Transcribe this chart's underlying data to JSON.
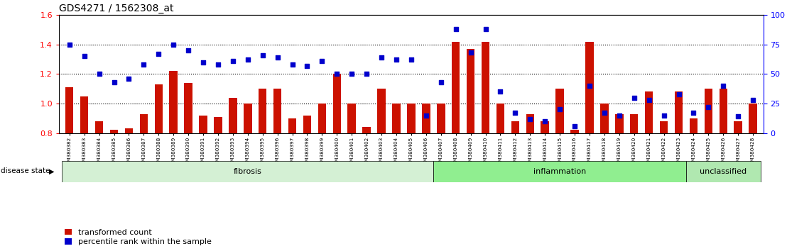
{
  "title": "GDS4271 / 1562308_at",
  "samples": [
    "GSM380382",
    "GSM380383",
    "GSM380384",
    "GSM380385",
    "GSM380386",
    "GSM380387",
    "GSM380388",
    "GSM380389",
    "GSM380390",
    "GSM380391",
    "GSM380392",
    "GSM380393",
    "GSM380394",
    "GSM380395",
    "GSM380396",
    "GSM380397",
    "GSM380398",
    "GSM380399",
    "GSM380400",
    "GSM380401",
    "GSM380402",
    "GSM380403",
    "GSM380404",
    "GSM380405",
    "GSM380406",
    "GSM380407",
    "GSM380408",
    "GSM380409",
    "GSM380410",
    "GSM380411",
    "GSM380412",
    "GSM380413",
    "GSM380414",
    "GSM380415",
    "GSM380416",
    "GSM380417",
    "GSM380418",
    "GSM380419",
    "GSM380420",
    "GSM380421",
    "GSM380422",
    "GSM380423",
    "GSM380424",
    "GSM380425",
    "GSM380426",
    "GSM380427",
    "GSM380428"
  ],
  "bar_values": [
    1.11,
    1.05,
    0.88,
    0.82,
    0.83,
    0.93,
    1.13,
    1.22,
    1.14,
    0.92,
    0.91,
    1.04,
    1.0,
    1.1,
    1.1,
    0.9,
    0.92,
    1.0,
    1.2,
    1.0,
    0.84,
    1.1,
    1.0,
    1.0,
    1.0,
    1.0,
    1.42,
    1.37,
    1.42,
    1.0,
    0.88,
    0.93,
    0.88,
    1.1,
    0.82,
    1.42,
    1.0,
    0.93,
    0.93,
    1.08,
    0.88,
    1.08,
    0.9,
    1.1,
    1.1,
    0.88,
    1.0
  ],
  "dot_values": [
    75,
    65,
    50,
    43,
    46,
    58,
    67,
    75,
    70,
    60,
    58,
    61,
    62,
    66,
    64,
    58,
    57,
    61,
    50,
    50,
    50,
    64,
    62,
    62,
    15,
    43,
    88,
    68,
    88,
    35,
    17,
    12,
    10,
    20,
    6,
    40,
    17,
    15,
    30,
    28,
    15,
    33,
    17,
    22,
    40,
    14,
    28
  ],
  "disease_groups": [
    {
      "label": "fibrosis",
      "start": 0,
      "end": 25,
      "color": "#d4f0d4"
    },
    {
      "label": "inflammation",
      "start": 25,
      "end": 42,
      "color": "#90ee90"
    },
    {
      "label": "unclassified",
      "start": 42,
      "end": 47,
      "color": "#b0e8b0"
    }
  ],
  "ylim_left": [
    0.8,
    1.6
  ],
  "ylim_right": [
    0,
    100
  ],
  "yticks_left": [
    0.8,
    1.0,
    1.2,
    1.4,
    1.6
  ],
  "yticks_right": [
    0,
    25,
    50,
    75,
    100
  ],
  "bar_color": "#cc1100",
  "dot_color": "#0000cc",
  "bar_bottom": 0.8,
  "legend_labels": [
    "transformed count",
    "percentile rank within the sample"
  ],
  "disease_state_label": "disease state"
}
